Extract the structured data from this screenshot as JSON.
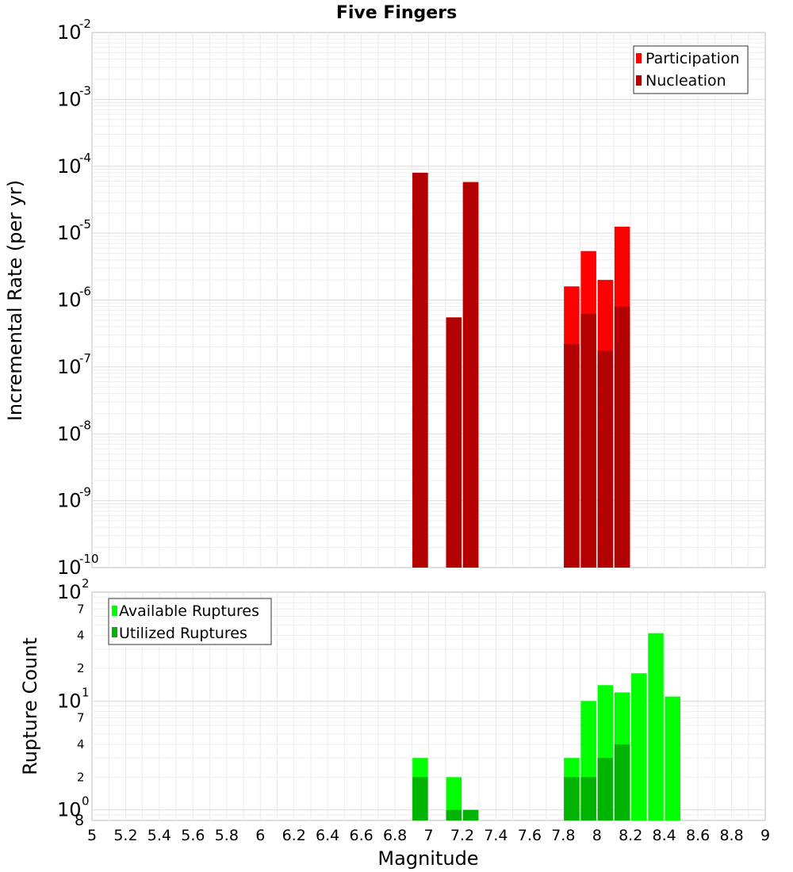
{
  "chart_data": [
    {
      "type": "bar",
      "title": "Five Fingers",
      "xlabel": "",
      "ylabel": "Incremental Rate (per yr)",
      "yscale": "log",
      "xlim": [
        5,
        9
      ],
      "ylim": [
        1e-10,
        0.01
      ],
      "y_tick_exponents": [
        -10,
        -9,
        -8,
        -7,
        -6,
        -5,
        -4,
        -3,
        -2
      ],
      "grid": true,
      "legend_position": "top-right",
      "series": [
        {
          "name": "Participation",
          "color": "#ff0000",
          "x": [
            6.95,
            7.15,
            7.25,
            7.85,
            7.95,
            8.05,
            8.15
          ],
          "values": [
            8e-05,
            5.5e-07,
            5.8e-05,
            1.6e-06,
            5.4e-06,
            2e-06,
            1.25e-05
          ]
        },
        {
          "name": "Nucleation",
          "color": "#b30000",
          "x": [
            6.95,
            7.15,
            7.25,
            7.85,
            7.95,
            8.05,
            8.15
          ],
          "values": [
            8e-05,
            5.5e-07,
            5.8e-05,
            2.2e-07,
            6.2e-07,
            1.75e-07,
            8e-07
          ]
        }
      ]
    },
    {
      "type": "bar",
      "title": "",
      "xlabel": "Magnitude",
      "ylabel": "Rupture Count",
      "yscale": "log",
      "xlim": [
        5,
        9
      ],
      "ylim": [
        0.8,
        100
      ],
      "x_ticks": [
        "5",
        "5.2",
        "5.4",
        "5.6",
        "5.8",
        "6",
        "6.2",
        "6.4",
        "6.6",
        "6.8",
        "7",
        "7.2",
        "7.4",
        "7.6",
        "7.8",
        "8",
        "8.2",
        "8.4",
        "8.6",
        "8.8",
        "9"
      ],
      "y_tick_exponents": [
        0,
        1,
        2
      ],
      "y_minor_ticks": [
        {
          "value": 2,
          "label": "2"
        },
        {
          "value": 4,
          "label": "4"
        },
        {
          "value": 7,
          "label": "7"
        },
        {
          "value": 20,
          "label": "2"
        },
        {
          "value": 40,
          "label": "4"
        },
        {
          "value": 70,
          "label": "7"
        }
      ],
      "y_bottom_label": "8",
      "grid": true,
      "legend_position": "top-left",
      "series": [
        {
          "name": "Available Ruptures",
          "color": "#00ff00",
          "x": [
            6.95,
            7.15,
            7.25,
            7.85,
            7.95,
            8.05,
            8.15,
            8.25,
            8.35,
            8.45
          ],
          "values": [
            3,
            2,
            1,
            3,
            10,
            14,
            12,
            18,
            42,
            11
          ]
        },
        {
          "name": "Utilized Ruptures",
          "color": "#00b300",
          "x": [
            6.95,
            7.15,
            7.25,
            7.85,
            7.95,
            8.05,
            8.15
          ],
          "values": [
            2,
            1,
            1,
            2,
            2,
            3,
            4
          ]
        }
      ]
    }
  ]
}
